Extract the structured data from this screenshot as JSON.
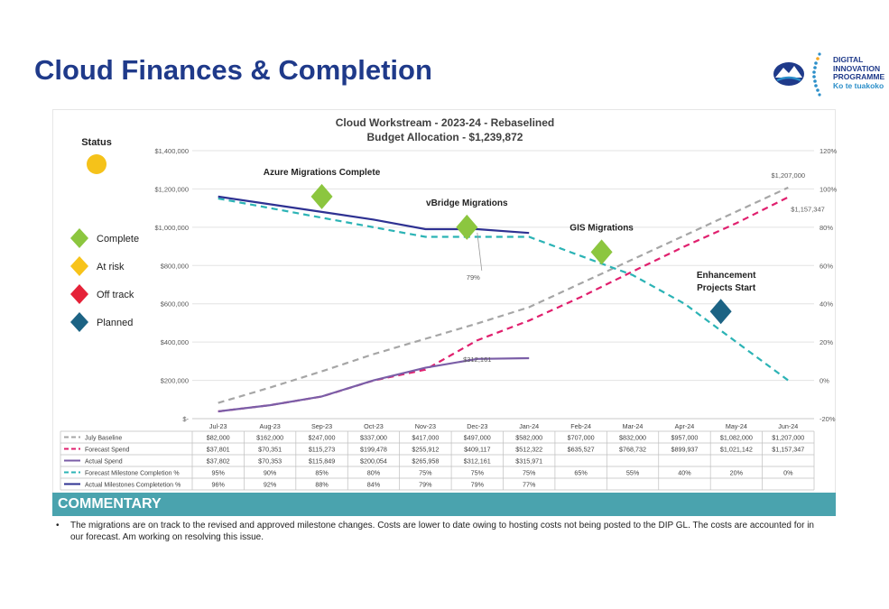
{
  "page": {
    "title": "Cloud Finances & Completion"
  },
  "logo": {
    "line1": "DIGITAL",
    "line2": "INNOVATION",
    "line3": "PROGRAMME",
    "line4": "Ko te tuakoko"
  },
  "status": {
    "label": "Status",
    "color": "#f5c21a"
  },
  "legend_status": [
    {
      "label": "Complete",
      "color": "#8cc63f"
    },
    {
      "label": "At risk",
      "color": "#f7c31a"
    },
    {
      "label": "Off track",
      "color": "#e52238"
    },
    {
      "label": "Planned",
      "color": "#1c6384"
    }
  ],
  "chart_data": {
    "type": "line",
    "title": "Cloud Workstream - 2023-24 - Rebaselined",
    "subtitle": "Budget Allocation - $1,239,872",
    "categories": [
      "Jul-23",
      "Aug-23",
      "Sep-23",
      "Oct-23",
      "Nov-23",
      "Dec-23",
      "Jan-24",
      "Feb-24",
      "Mar-24",
      "Apr-24",
      "May-24",
      "Jun-24"
    ],
    "y_left": {
      "min": 0,
      "max": 1400000,
      "step": 200000,
      "ticks": [
        "$-",
        "$200,000",
        "$400,000",
        "$600,000",
        "$800,000",
        "$1,000,000",
        "$1,200,000",
        "$1,400,000"
      ]
    },
    "y_right": {
      "min": -20,
      "max": 120,
      "step": 20,
      "ticks": [
        "-20%",
        "0%",
        "20%",
        "40%",
        "60%",
        "80%",
        "100%",
        "120%"
      ]
    },
    "series": [
      {
        "name": "July Baseline",
        "axis": "left",
        "color": "#a6a6a6",
        "dash": "dashed",
        "values": [
          82000,
          162000,
          247000,
          337000,
          417000,
          497000,
          582000,
          707000,
          832000,
          957000,
          1082000,
          1207000
        ],
        "display": [
          "$82,000",
          "$162,000",
          "$247,000",
          "$337,000",
          "$417,000",
          "$497,000",
          "$582,000",
          "$707,000",
          "$832,000",
          "$957,000",
          "$1,082,000",
          "$1,207,000"
        ]
      },
      {
        "name": "Forecast Spend",
        "axis": "left",
        "color": "#e0206e",
        "dash": "dashed",
        "values": [
          37801,
          70351,
          115273,
          199478,
          255912,
          409117,
          512322,
          635527,
          768732,
          899937,
          1021142,
          1157347
        ],
        "display": [
          "$37,801",
          "$70,351",
          "$115,273",
          "$199,478",
          "$255,912",
          "$409,117",
          "$512,322",
          "$635,527",
          "$768,732",
          "$899,937",
          "$1,021,142",
          "$1,157,347"
        ]
      },
      {
        "name": "Actual Spend",
        "axis": "left",
        "color": "#7b5ea7",
        "dash": "solid",
        "values": [
          37802,
          70353,
          115849,
          200054,
          265958,
          312161,
          315971,
          null,
          null,
          null,
          null,
          null
        ],
        "display": [
          "$37,802",
          "$70,353",
          "$115,849",
          "$200,054",
          "$265,958",
          "$312,161",
          "$315,971",
          "",
          "",
          "",
          "",
          ""
        ]
      },
      {
        "name": "Forecast Milestone Completion %",
        "axis": "right",
        "color": "#2bb3b5",
        "dash": "dashed",
        "values": [
          95,
          90,
          85,
          80,
          75,
          75,
          75,
          65,
          55,
          40,
          20,
          0
        ],
        "display": [
          "95%",
          "90%",
          "85%",
          "80%",
          "75%",
          "75%",
          "75%",
          "65%",
          "55%",
          "40%",
          "20%",
          "0%"
        ]
      },
      {
        "name": "Actual Milestones Completetion  %",
        "axis": "right",
        "color": "#2e3192",
        "dash": "solid",
        "values": [
          96,
          92,
          88,
          84,
          79,
          79,
          77,
          null,
          null,
          null,
          null,
          null
        ],
        "display": [
          "96%",
          "92%",
          "88%",
          "84%",
          "79%",
          "79%",
          "77%",
          "",
          "",
          "",
          "",
          ""
        ]
      }
    ],
    "data_labels": [
      {
        "text": "$1,207,000",
        "series": "July Baseline",
        "index": 11
      },
      {
        "text": "$1,157,347",
        "series": "Forecast Spend",
        "index": 11
      },
      {
        "text": "$312,161",
        "series": "Actual Spend",
        "index": 5
      },
      {
        "text": "79%",
        "series": "Actual Milestones Completetion  %",
        "index": 5
      }
    ],
    "milestones": [
      {
        "label": "Azure Migrations Complete",
        "status": "Complete",
        "index": 2.5,
        "level": 1160000
      },
      {
        "label": "vBridge Migrations",
        "status": "Complete",
        "index": 5.3,
        "level": 1000000
      },
      {
        "label": "GIS Migrations",
        "status": "Complete",
        "index": 7.9,
        "level": 870000
      },
      {
        "label_line1": "Enhancement",
        "label_line2": "Projects Start",
        "status": "Planned",
        "index": 10.2,
        "level": 560000
      }
    ]
  },
  "commentary": {
    "title": "COMMENTARY",
    "bullet": "•",
    "text": "The migrations are on track to the revised and approved  milestone changes. Costs are lower to date owing to hosting costs not being posted to the DIP GL. The costs are accounted for in our forecast. Am working on resolving this issue."
  }
}
